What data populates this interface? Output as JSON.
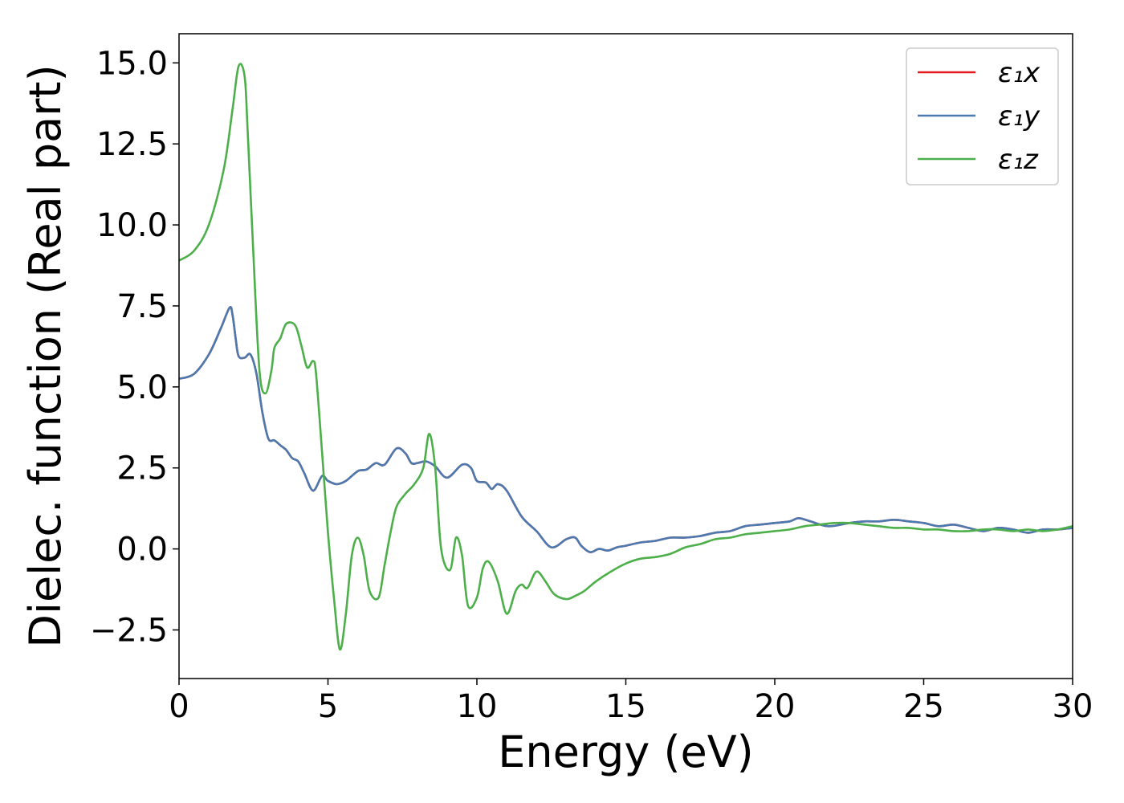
{
  "chart_data": {
    "type": "line",
    "title": "",
    "xlabel": "Energy (eV)",
    "ylabel": "Dielec. function (Real part)",
    "xlim": [
      0,
      30
    ],
    "ylim": [
      -4.0,
      15.9
    ],
    "xticks": [
      0,
      5,
      10,
      15,
      20,
      25,
      30
    ],
    "xtick_labels": [
      "0",
      "5",
      "10",
      "15",
      "20",
      "25",
      "30"
    ],
    "yticks": [
      -2.5,
      0.0,
      2.5,
      5.0,
      7.5,
      10.0,
      12.5,
      15.0
    ],
    "ytick_labels": [
      "−2.5",
      "0.0",
      "2.5",
      "5.0",
      "7.5",
      "10.0",
      "12.5",
      "15.0"
    ],
    "grid": false,
    "legend_position": "top-right",
    "series": [
      {
        "name": "ε₁x",
        "color": "#e41a1c",
        "x": [
          0,
          0.5,
          1.0,
          1.4,
          1.7,
          1.8,
          1.9,
          2.0,
          2.2,
          2.4,
          2.6,
          2.8,
          3.0,
          3.2,
          3.4,
          3.6,
          3.8,
          4.0,
          4.2,
          4.5,
          4.8,
          5.0,
          5.3,
          5.6,
          6.0,
          6.3,
          6.6,
          6.9,
          7.3,
          7.6,
          7.8,
          8.0,
          8.3,
          8.6,
          9.0,
          9.5,
          9.8,
          10.0,
          10.3,
          10.5,
          10.7,
          11.0,
          11.5,
          12.0,
          12.5,
          13.0,
          13.3,
          13.5,
          13.8,
          14.1,
          14.4,
          14.7,
          15.0,
          15.5,
          16.0,
          16.5,
          17.0,
          17.5,
          18.0,
          18.5,
          19.0,
          19.5,
          20.0,
          20.5,
          20.8,
          21.2,
          21.8,
          22.5,
          23.0,
          23.5,
          24.0,
          24.5,
          25.0,
          25.5,
          26.0,
          26.5,
          27.0,
          27.5,
          28.0,
          28.5,
          29.0,
          29.5,
          30.0
        ],
        "y": [
          5.25,
          5.4,
          6.0,
          6.8,
          7.45,
          7.2,
          6.5,
          5.95,
          5.9,
          6.0,
          5.4,
          4.2,
          3.4,
          3.35,
          3.2,
          3.05,
          2.8,
          2.7,
          2.35,
          1.8,
          2.25,
          2.1,
          2.0,
          2.1,
          2.4,
          2.45,
          2.65,
          2.6,
          3.1,
          2.95,
          2.65,
          2.65,
          2.7,
          2.55,
          2.2,
          2.6,
          2.5,
          2.1,
          2.05,
          1.85,
          2.0,
          1.8,
          1.0,
          0.55,
          0.05,
          0.3,
          0.35,
          0.1,
          -0.1,
          0.0,
          -0.05,
          0.05,
          0.1,
          0.2,
          0.25,
          0.35,
          0.35,
          0.4,
          0.5,
          0.55,
          0.7,
          0.75,
          0.8,
          0.85,
          0.95,
          0.85,
          0.7,
          0.8,
          0.85,
          0.85,
          0.9,
          0.85,
          0.8,
          0.7,
          0.75,
          0.65,
          0.55,
          0.65,
          0.6,
          0.5,
          0.6,
          0.6,
          0.65
        ]
      },
      {
        "name": "ε₁y",
        "color": "#4a7ab0",
        "x": [
          0,
          0.5,
          1.0,
          1.4,
          1.7,
          1.8,
          1.9,
          2.0,
          2.2,
          2.4,
          2.6,
          2.8,
          3.0,
          3.2,
          3.4,
          3.6,
          3.8,
          4.0,
          4.2,
          4.5,
          4.8,
          5.0,
          5.3,
          5.6,
          6.0,
          6.3,
          6.6,
          6.9,
          7.3,
          7.6,
          7.8,
          8.0,
          8.3,
          8.6,
          9.0,
          9.5,
          9.8,
          10.0,
          10.3,
          10.5,
          10.7,
          11.0,
          11.5,
          12.0,
          12.5,
          13.0,
          13.3,
          13.5,
          13.8,
          14.1,
          14.4,
          14.7,
          15.0,
          15.5,
          16.0,
          16.5,
          17.0,
          17.5,
          18.0,
          18.5,
          19.0,
          19.5,
          20.0,
          20.5,
          20.8,
          21.2,
          21.8,
          22.5,
          23.0,
          23.5,
          24.0,
          24.5,
          25.0,
          25.5,
          26.0,
          26.5,
          27.0,
          27.5,
          28.0,
          28.5,
          29.0,
          29.5,
          30.0
        ],
        "y": [
          5.25,
          5.4,
          6.0,
          6.8,
          7.45,
          7.2,
          6.5,
          5.95,
          5.9,
          6.0,
          5.4,
          4.2,
          3.4,
          3.35,
          3.2,
          3.05,
          2.8,
          2.7,
          2.35,
          1.8,
          2.25,
          2.1,
          2.0,
          2.1,
          2.4,
          2.45,
          2.65,
          2.6,
          3.1,
          2.95,
          2.65,
          2.65,
          2.7,
          2.55,
          2.2,
          2.6,
          2.5,
          2.1,
          2.05,
          1.85,
          2.0,
          1.8,
          1.0,
          0.55,
          0.05,
          0.3,
          0.35,
          0.1,
          -0.1,
          0.0,
          -0.05,
          0.05,
          0.1,
          0.2,
          0.25,
          0.35,
          0.35,
          0.4,
          0.5,
          0.55,
          0.7,
          0.75,
          0.8,
          0.85,
          0.95,
          0.85,
          0.7,
          0.8,
          0.85,
          0.85,
          0.9,
          0.85,
          0.8,
          0.7,
          0.75,
          0.65,
          0.55,
          0.65,
          0.6,
          0.5,
          0.6,
          0.6,
          0.65
        ]
      },
      {
        "name": "ε₁z",
        "color": "#4daf4a",
        "x": [
          0,
          0.5,
          1.0,
          1.5,
          1.8,
          2.0,
          2.2,
          2.3,
          2.5,
          2.7,
          2.9,
          3.1,
          3.2,
          3.4,
          3.6,
          3.9,
          4.1,
          4.3,
          4.5,
          4.6,
          4.8,
          5.0,
          5.2,
          5.4,
          5.6,
          5.8,
          6.0,
          6.2,
          6.4,
          6.7,
          6.9,
          7.1,
          7.3,
          7.6,
          7.9,
          8.2,
          8.4,
          8.6,
          8.8,
          9.1,
          9.3,
          9.5,
          9.7,
          10.0,
          10.2,
          10.4,
          10.7,
          11.0,
          11.3,
          11.5,
          11.7,
          12.0,
          12.3,
          12.6,
          13.0,
          13.3,
          13.6,
          14.0,
          14.5,
          15.0,
          15.5,
          16.0,
          16.5,
          17.0,
          17.5,
          18.0,
          18.5,
          19.0,
          19.5,
          20.0,
          20.5,
          21.0,
          21.5,
          22.0,
          22.5,
          23.0,
          23.5,
          24.0,
          24.5,
          25.0,
          25.5,
          26.0,
          26.5,
          27.0,
          27.5,
          28.0,
          28.5,
          29.0,
          29.5,
          30.0
        ],
        "y": [
          8.9,
          9.2,
          10.0,
          11.7,
          13.6,
          14.9,
          14.6,
          13.0,
          9.0,
          5.5,
          4.8,
          5.5,
          6.2,
          6.5,
          6.95,
          6.9,
          6.3,
          5.6,
          5.8,
          5.4,
          3.0,
          0.5,
          -1.5,
          -3.1,
          -2.0,
          -0.2,
          0.35,
          -0.2,
          -1.3,
          -1.5,
          -0.5,
          0.5,
          1.3,
          1.7,
          2.0,
          2.5,
          3.55,
          2.5,
          0.0,
          -0.65,
          0.35,
          -0.2,
          -1.75,
          -1.5,
          -0.6,
          -0.4,
          -1.0,
          -2.0,
          -1.3,
          -1.1,
          -1.2,
          -0.7,
          -1.0,
          -1.4,
          -1.55,
          -1.45,
          -1.3,
          -1.0,
          -0.7,
          -0.45,
          -0.3,
          -0.25,
          -0.15,
          0.05,
          0.15,
          0.3,
          0.35,
          0.45,
          0.5,
          0.55,
          0.6,
          0.7,
          0.75,
          0.8,
          0.8,
          0.75,
          0.7,
          0.65,
          0.65,
          0.6,
          0.6,
          0.55,
          0.55,
          0.6,
          0.6,
          0.55,
          0.6,
          0.55,
          0.6,
          0.7
        ]
      }
    ]
  }
}
